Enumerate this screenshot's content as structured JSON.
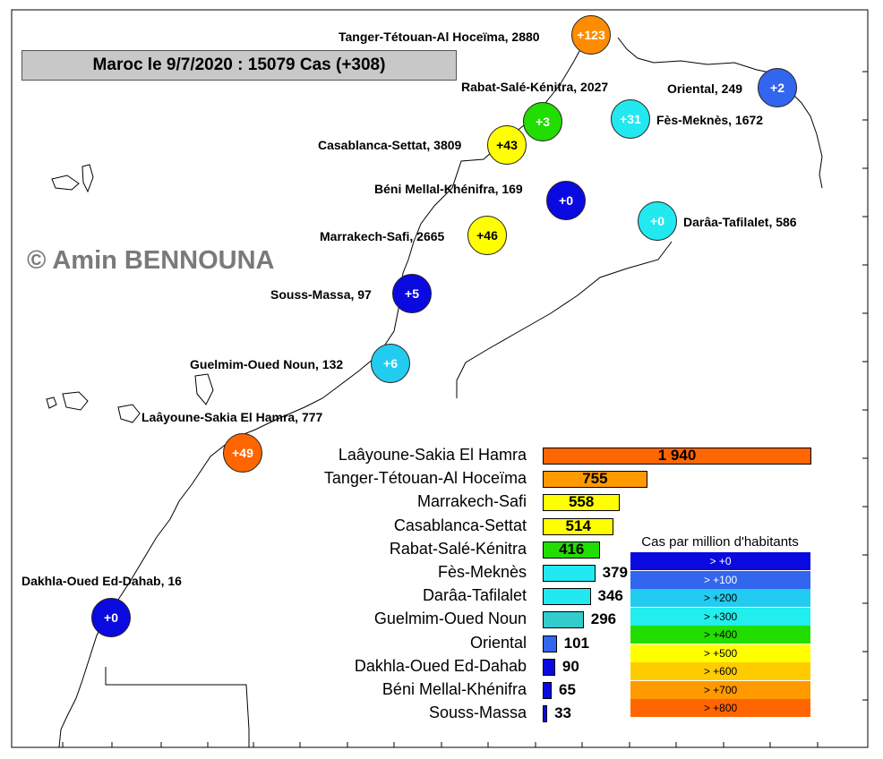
{
  "title": "Maroc le 9/7/2020 : 15079 Cas (+308)",
  "copyright": "© Amin BENNOUNA",
  "regions": [
    {
      "id": "tanger",
      "label": "Tanger-Tétouan-Al Hoceïma, 2880",
      "badge": "+123",
      "color": "#ff8c00"
    },
    {
      "id": "rabat",
      "label": "Rabat-Salé-Kénitra, 2027",
      "badge": "+3",
      "color": "#22dd00"
    },
    {
      "id": "oriental",
      "label": "Oriental, 249",
      "badge": "+2",
      "color": "#3366ee"
    },
    {
      "id": "fes",
      "label": "Fès-Meknès, 1672",
      "badge": "+31",
      "color": "#22e8f0"
    },
    {
      "id": "casablanca",
      "label": "Casablanca-Settat, 3809",
      "badge": "+43",
      "color": "#ffff00"
    },
    {
      "id": "beni",
      "label": "Béni Mellal-Khénifra, 169",
      "badge": "+0",
      "color": "#0a0ae0"
    },
    {
      "id": "draa",
      "label": "Darâa-Tafilalet, 586",
      "badge": "+0",
      "color": "#22e8f0"
    },
    {
      "id": "marrakech",
      "label": "Marrakech-Safi, 2665",
      "badge": "+46",
      "color": "#ffff00"
    },
    {
      "id": "souss",
      "label": "Souss-Massa, 97",
      "badge": "+5",
      "color": "#0a0ae0"
    },
    {
      "id": "guelmim",
      "label": "Guelmim-Oued Noun, 132",
      "badge": "+6",
      "color": "#22ccf0"
    },
    {
      "id": "laayoune",
      "label": "Laâyoune-Sakia El Hamra, 777",
      "badge": "+49",
      "color": "#ff6600"
    },
    {
      "id": "dakhla",
      "label": "Dakhla-Oued Ed-Dahab, 16",
      "badge": "+0",
      "color": "#0a0ae0"
    }
  ],
  "chart_data": {
    "type": "bar",
    "orientation": "horizontal",
    "categories": [
      "Laâyoune-Sakia El Hamra",
      "Tanger-Tétouan-Al Hoceïma",
      "Marrakech-Safi",
      "Casablanca-Settat",
      "Rabat-Salé-Kénitra",
      "Fès-Meknès",
      "Darâa-Tafilalet",
      "Guelmim-Oued Noun",
      "Oriental",
      "Dakhla-Oued Ed-Dahab",
      "Béni Mellal-Khénifra",
      "Souss-Massa"
    ],
    "values": [
      1940,
      755,
      558,
      514,
      416,
      379,
      346,
      296,
      101,
      90,
      65,
      33
    ],
    "value_labels": [
      "1 940",
      "755",
      "558",
      "514",
      "416",
      "379",
      "346",
      "296",
      "101",
      "90",
      "65",
      "33"
    ],
    "colors": [
      "#ff6600",
      "#ff9900",
      "#ffff00",
      "#ffff00",
      "#22dd00",
      "#22e8f0",
      "#22e8f0",
      "#33cccc",
      "#3366ee",
      "#0a0ae0",
      "#0a0ae0",
      "#0a0ae0"
    ],
    "xlim": [
      0,
      1940
    ]
  },
  "legend": {
    "title": "Cas par million d'habitants",
    "items": [
      {
        "label": "> +0",
        "color": "#0a0ae0",
        "text_color": "#ffffff"
      },
      {
        "label": "> +100",
        "color": "#3366ee",
        "text_color": "#ffffff"
      },
      {
        "label": "> +200",
        "color": "#22ccf0",
        "text_color": "#000000"
      },
      {
        "label": "> +300",
        "color": "#22eeee",
        "text_color": "#000000"
      },
      {
        "label": "> +400",
        "color": "#22dd00",
        "text_color": "#000000"
      },
      {
        "label": "> +500",
        "color": "#ffff00",
        "text_color": "#000000"
      },
      {
        "label": "> +600",
        "color": "#ffcc00",
        "text_color": "#000000"
      },
      {
        "label": "> +700",
        "color": "#ff9900",
        "text_color": "#000000"
      },
      {
        "label": "> +800",
        "color": "#ff6600",
        "text_color": "#000000"
      }
    ]
  }
}
